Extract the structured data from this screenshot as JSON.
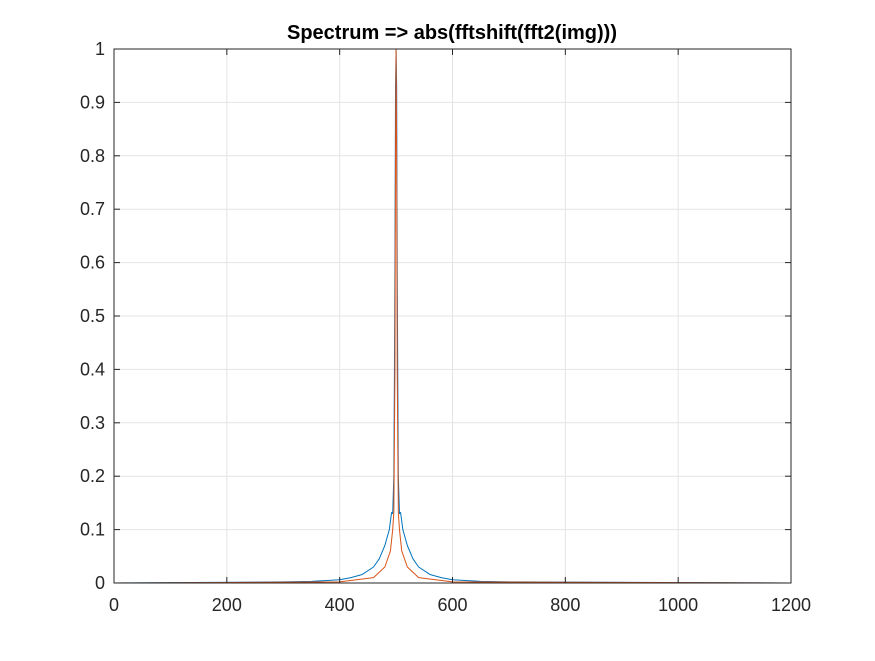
{
  "chart_data": {
    "type": "line",
    "title": "Spectrum => abs(fftshift(fft2(img)))",
    "xlabel": "",
    "ylabel": "",
    "xlim": [
      0,
      1200
    ],
    "ylim": [
      0,
      1
    ],
    "xticks": [
      "0",
      "200",
      "400",
      "600",
      "800",
      "1000",
      "1200"
    ],
    "yticks": [
      "0",
      "0.1",
      "0.2",
      "0.3",
      "0.4",
      "0.5",
      "0.6",
      "0.7",
      "0.8",
      "0.9",
      "1"
    ],
    "grid": true,
    "x_data_extent": [
      1,
      1200
    ],
    "series": [
      {
        "color": "#0072BD",
        "x": [
          1,
          300,
          350,
          400,
          420,
          440,
          460,
          470,
          480,
          488,
          492,
          494,
          496,
          497,
          498,
          499,
          500,
          501,
          502,
          503,
          504,
          506,
          508,
          512,
          520,
          530,
          540,
          560,
          580,
          600,
          650,
          700,
          1200
        ],
        "y": [
          0.0,
          0.002,
          0.003,
          0.006,
          0.01,
          0.016,
          0.03,
          0.045,
          0.07,
          0.1,
          0.132,
          0.13,
          0.2,
          0.38,
          0.6,
          0.93,
          1.0,
          0.93,
          0.6,
          0.38,
          0.2,
          0.13,
          0.132,
          0.1,
          0.07,
          0.045,
          0.03,
          0.016,
          0.01,
          0.006,
          0.003,
          0.002,
          0.0
        ]
      },
      {
        "color": "#D95319",
        "x": [
          1,
          400,
          460,
          480,
          490,
          494,
          496,
          498,
          499,
          500,
          501,
          502,
          504,
          506,
          510,
          520,
          540,
          600,
          1200
        ],
        "y": [
          0.0,
          0.002,
          0.01,
          0.03,
          0.06,
          0.1,
          0.132,
          0.4,
          0.8,
          1.0,
          0.8,
          0.4,
          0.132,
          0.1,
          0.06,
          0.03,
          0.01,
          0.002,
          0.0
        ]
      }
    ]
  }
}
